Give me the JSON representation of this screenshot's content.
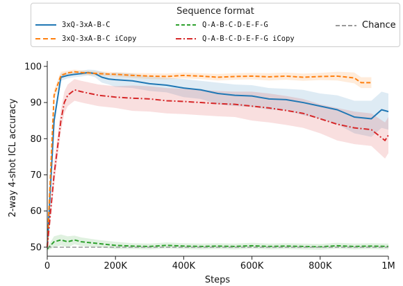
{
  "chart_data": {
    "type": "line",
    "title": "",
    "xlabel": "Steps",
    "ylabel": "2-way 4-shot ICL accuracy",
    "xlim": [
      0,
      1000000
    ],
    "ylim": [
      47.5,
      101.5
    ],
    "xticks": [
      0,
      200000,
      400000,
      600000,
      800000,
      1000000
    ],
    "xtick_labels": [
      "0",
      "200K",
      "400K",
      "600K",
      "800K",
      "1M"
    ],
    "yticks": [
      50,
      60,
      70,
      80,
      90,
      100
    ],
    "ytick_labels": [
      "50",
      "60",
      "70",
      "80",
      "90",
      "100"
    ],
    "grid": false,
    "legend": {
      "title": "Sequence format",
      "placement": "top"
    },
    "series": [
      {
        "name": "3xQ-3xA-B-C",
        "color": "#1f77b4",
        "style": "solid",
        "x": [
          0,
          20000,
          40000,
          60000,
          80000,
          100000,
          120000,
          140000,
          160000,
          180000,
          200000,
          250000,
          300000,
          350000,
          400000,
          450000,
          500000,
          550000,
          600000,
          650000,
          700000,
          750000,
          800000,
          850000,
          900000,
          950000,
          980000,
          1000000
        ],
        "y": [
          50,
          85,
          97,
          97.5,
          97.8,
          98,
          98.3,
          98,
          97,
          96.5,
          96.3,
          96,
          95.2,
          94.8,
          94,
          93.5,
          92.5,
          92,
          91.8,
          91,
          90.8,
          90,
          89,
          88,
          86,
          85.5,
          88,
          87.5
        ],
        "band": [
          0.5,
          1.5,
          1,
          0.8,
          0.8,
          0.8,
          0.8,
          1,
          1.5,
          1.5,
          2,
          2,
          2,
          2,
          2.5,
          2.5,
          3,
          3,
          3,
          3,
          3,
          3.5,
          3.5,
          4,
          4.5,
          5,
          5,
          5
        ]
      },
      {
        "name": "3xQ-3xA-B-C iCopy",
        "color": "#ff7f0e",
        "style": "dashed",
        "x": [
          0,
          20000,
          40000,
          60000,
          80000,
          100000,
          150000,
          200000,
          250000,
          300000,
          350000,
          400000,
          450000,
          500000,
          550000,
          600000,
          650000,
          700000,
          750000,
          800000,
          850000,
          900000,
          920000,
          950000
        ],
        "y": [
          50,
          92,
          97.5,
          98.2,
          98.5,
          98.3,
          98,
          97.8,
          97.5,
          97.3,
          97.2,
          97.5,
          97.3,
          97,
          97.2,
          97.3,
          97.1,
          97.3,
          97,
          97.2,
          97.3,
          96.8,
          95.5,
          95.5
        ],
        "band": [
          0.5,
          1.5,
          1,
          0.6,
          0.6,
          0.6,
          0.6,
          0.6,
          0.7,
          0.8,
          0.8,
          0.8,
          0.8,
          0.9,
          0.9,
          0.9,
          1,
          1,
          1,
          1,
          1.2,
          1.5,
          1.5,
          1.5
        ]
      },
      {
        "name": "Q-A-B-C-D-E-F-G",
        "color": "#2ca02c",
        "style": "dashed",
        "x": [
          0,
          20000,
          40000,
          60000,
          80000,
          100000,
          150000,
          200000,
          250000,
          300000,
          350000,
          400000,
          450000,
          500000,
          550000,
          600000,
          650000,
          700000,
          750000,
          800000,
          850000,
          900000,
          950000,
          1000000
        ],
        "y": [
          49.5,
          51.5,
          52,
          51.5,
          52,
          51.5,
          51,
          50.5,
          50.3,
          50.2,
          50.5,
          50.3,
          50.2,
          50.3,
          50.2,
          50.4,
          50.2,
          50.3,
          50.2,
          50.1,
          50.4,
          50.2,
          50.3,
          50.2
        ],
        "band": [
          0.5,
          1.5,
          1.5,
          1.5,
          1.2,
          1.2,
          1,
          1,
          0.8,
          0.8,
          0.8,
          0.8,
          0.8,
          0.8,
          0.8,
          0.8,
          0.8,
          0.8,
          0.8,
          0.8,
          0.8,
          0.8,
          0.8,
          0.8
        ]
      },
      {
        "name": "Q-A-B-C-D-E-F-G iCopy",
        "color": "#d62728",
        "style": "dashdot",
        "x": [
          0,
          20000,
          40000,
          50000,
          60000,
          80000,
          100000,
          150000,
          200000,
          250000,
          300000,
          350000,
          400000,
          450000,
          500000,
          550000,
          600000,
          650000,
          700000,
          750000,
          800000,
          850000,
          900000,
          950000,
          990000,
          1000000
        ],
        "y": [
          50,
          70,
          85,
          90,
          92,
          93.5,
          93,
          92,
          91.5,
          91.2,
          91,
          90.5,
          90.3,
          90,
          89.7,
          89.5,
          89,
          88.5,
          87.8,
          87,
          85.5,
          84,
          83,
          82.5,
          79.5,
          81
        ],
        "band": [
          0.5,
          3,
          3,
          3,
          3,
          3,
          3,
          3,
          3,
          3.5,
          3.5,
          3.5,
          3.5,
          3.5,
          3.5,
          3.5,
          4,
          4,
          4,
          4,
          4,
          4.5,
          4.5,
          4.5,
          5,
          5
        ]
      },
      {
        "name": "Chance",
        "color": "#999999",
        "style": "dashed",
        "x": [
          0,
          1000000
        ],
        "y": [
          50,
          50
        ],
        "band": [
          0,
          0
        ]
      }
    ]
  }
}
